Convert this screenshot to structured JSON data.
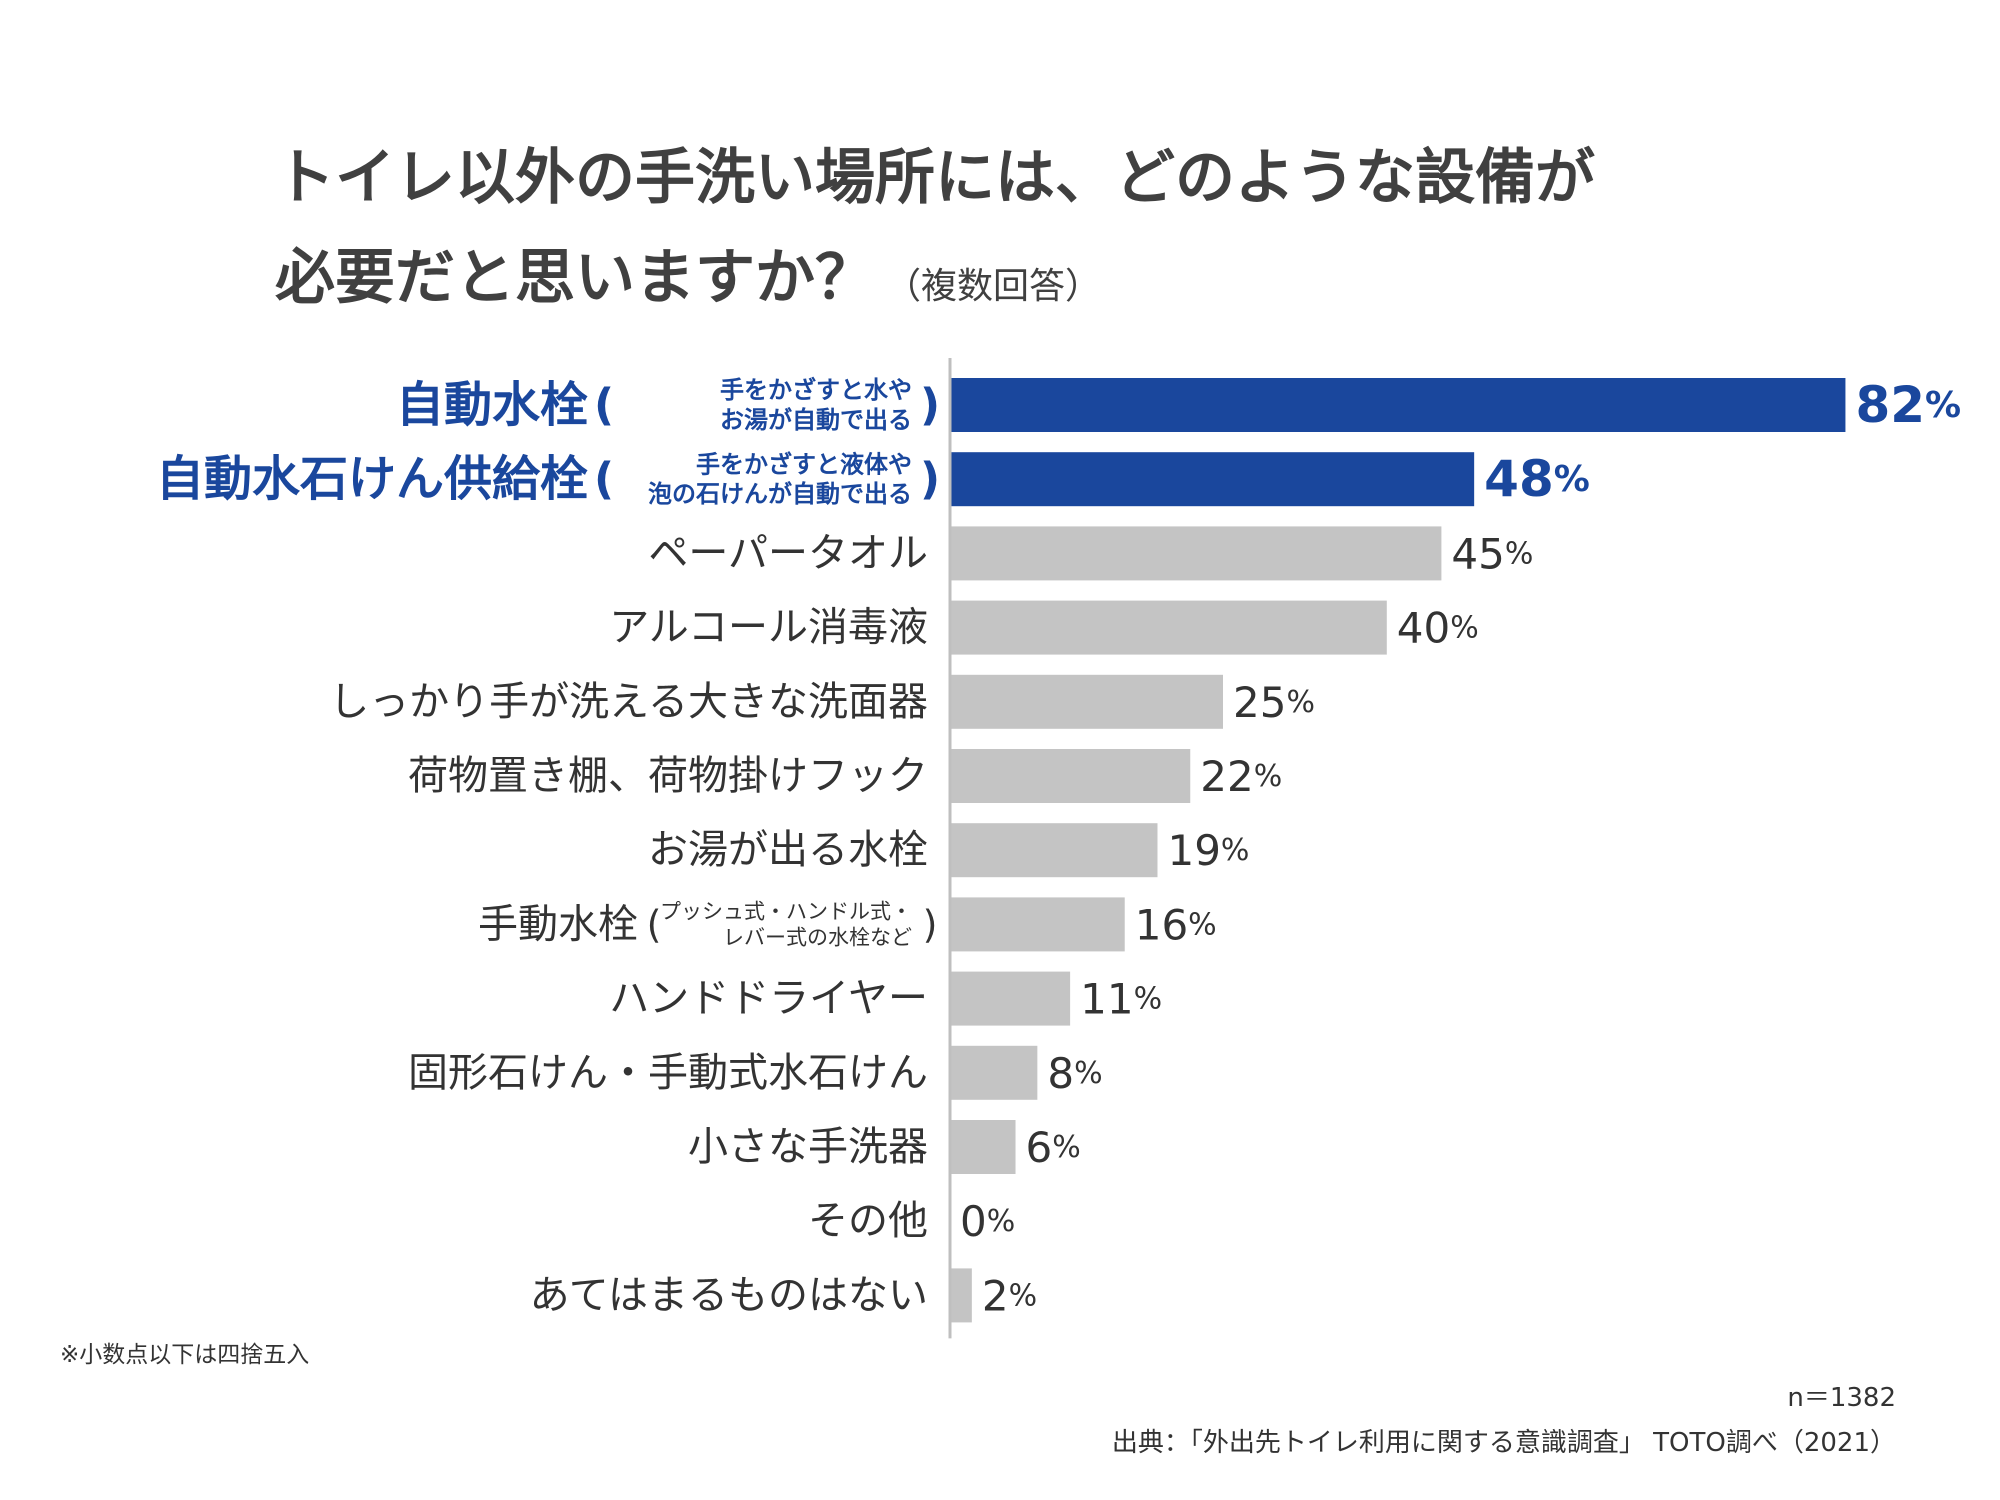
{
  "title": {
    "line1": "トイレ以外の手洗い場所には、どのような設備が",
    "line2": "必要だと思いますか？",
    "suffix": "（複数回答）"
  },
  "notes": {
    "rounding": "※小数点以下は四捨五入",
    "sample": "n＝1382",
    "source": "出典：「外出先トイレ利用に関する意識調査」 TOTO調べ（2021）"
  },
  "colors": {
    "highlight": "#1A479D",
    "bar": "#C4C4C4",
    "axis": "#BFBFBF",
    "text": "#333333"
  },
  "chart_data": {
    "type": "bar",
    "orientation": "horizontal",
    "unit": "%",
    "xlim": [
      0,
      100
    ],
    "categories": [
      {
        "label": "自動水栓",
        "note_line1": "手をかざすと水や",
        "note_line2": "お湯が自動で出る",
        "highlight": true
      },
      {
        "label": "自動水石けん供給栓",
        "note_line1": "手をかざすと液体や",
        "note_line2": "泡の石けんが自動で出る",
        "highlight": true
      },
      {
        "label": "ペーパータオル"
      },
      {
        "label": "アルコール消毒液"
      },
      {
        "label": "しっかり手が洗える大きな洗面器"
      },
      {
        "label": "荷物置き棚、荷物掛けフック"
      },
      {
        "label": "お湯が出る水栓"
      },
      {
        "label": "手動水栓",
        "note_line1": "プッシュ式・ハンドル式・",
        "note_line2": "レバー式の水栓など"
      },
      {
        "label": "ハンドドライヤー"
      },
      {
        "label": "固形石けん・手動式水石けん"
      },
      {
        "label": "小さな手洗器"
      },
      {
        "label": "その他"
      },
      {
        "label": "あてはまるものはない"
      }
    ],
    "values": [
      82,
      48,
      45,
      40,
      25,
      22,
      19,
      16,
      11,
      8,
      6,
      0,
      2
    ]
  }
}
